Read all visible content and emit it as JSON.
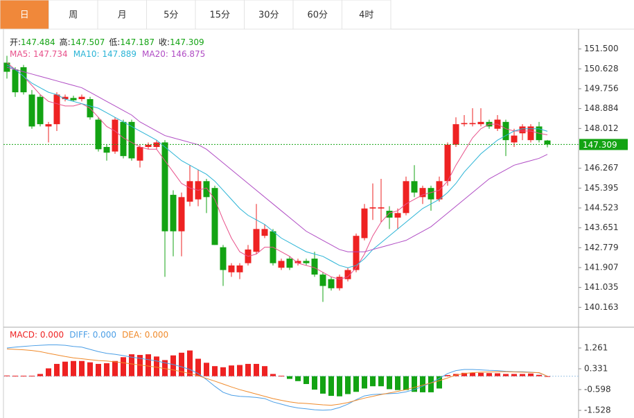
{
  "toolbar": {
    "tabs": [
      "日",
      "周",
      "月",
      "5分",
      "15分",
      "30分",
      "60分",
      "4时"
    ],
    "active": 0
  },
  "chart_data": {
    "type": "candlestick",
    "readout": [
      {
        "label": "开:",
        "value": "147.484"
      },
      {
        "label": "高:",
        "value": "147.507"
      },
      {
        "label": "低:",
        "value": "147.187"
      },
      {
        "label": "收:",
        "value": "147.309"
      }
    ],
    "up_color": "#ee2222",
    "down_color": "#13a313",
    "open": [
      150.9,
      150.6,
      150.7,
      149.5,
      149.4,
      148.1,
      148.2,
      149.3,
      149.35,
      149.3,
      149.3,
      148.4,
      147.2,
      147.0,
      148.3,
      148.3,
      146.6,
      147.2,
      147.2,
      147.4,
      145.1,
      143.5,
      144.8,
      144.9,
      145.7,
      145.4,
      142.8,
      141.7,
      141.7,
      142.1,
      142.6,
      143.3,
      143.5,
      141.9,
      142.3,
      142.1,
      142.2,
      142.3,
      141.6,
      141.4,
      141.0,
      141.4,
      141.8,
      143.2,
      144.5,
      144.5,
      144.4,
      144.1,
      144.3,
      145.7,
      145.0,
      145.4,
      144.9,
      145.7,
      147.3,
      148.2,
      148.2,
      148.2,
      148.3,
      148.0,
      148.3,
      147.4,
      147.8,
      147.5,
      148.1,
      147.484
    ],
    "high": [
      151.2,
      150.7,
      150.8,
      149.7,
      149.5,
      148.3,
      149.6,
      149.5,
      149.45,
      149.5,
      149.4,
      148.5,
      147.3,
      148.5,
      148.4,
      148.4,
      147.3,
      147.4,
      147.5,
      147.5,
      145.3,
      145.2,
      146.4,
      146.2,
      145.8,
      145.5,
      142.9,
      142.1,
      142.1,
      142.9,
      144.7,
      143.8,
      143.6,
      142.3,
      142.4,
      142.3,
      142.3,
      142.6,
      141.7,
      141.5,
      141.6,
      141.9,
      143.4,
      144.7,
      145.6,
      145.8,
      144.6,
      144.5,
      145.9,
      146.4,
      145.5,
      145.5,
      145.9,
      147.4,
      148.5,
      148.6,
      148.9,
      148.9,
      148.4,
      148.6,
      148.4,
      148.0,
      148.2,
      148.2,
      148.3,
      147.507
    ],
    "low": [
      150.2,
      149.4,
      149.5,
      148.0,
      148.1,
      147.4,
      147.9,
      149.2,
      149.2,
      149.2,
      148.4,
      147.0,
      146.6,
      146.9,
      146.7,
      146.6,
      146.3,
      147.1,
      147.1,
      141.5,
      142.4,
      142.4,
      144.6,
      144.6,
      144.3,
      142.9,
      141.1,
      141.5,
      141.4,
      142.0,
      142.5,
      143.2,
      142.0,
      141.8,
      141.8,
      142.0,
      142.0,
      141.5,
      140.4,
      140.9,
      140.9,
      141.3,
      141.7,
      143.1,
      144.0,
      143.9,
      143.6,
      143.6,
      144.2,
      145.0,
      144.7,
      144.4,
      144.8,
      145.5,
      147.2,
      148.1,
      148.1,
      148.1,
      148.0,
      147.9,
      146.8,
      147.2,
      147.5,
      147.4,
      147.4,
      147.187
    ],
    "close": [
      150.5,
      149.6,
      149.6,
      148.1,
      148.2,
      148.2,
      149.5,
      149.4,
      149.25,
      149.4,
      148.5,
      147.1,
      146.95,
      148.4,
      146.8,
      146.7,
      147.2,
      147.3,
      147.4,
      143.5,
      143.5,
      145.0,
      145.7,
      145.7,
      145.0,
      142.9,
      141.8,
      142.0,
      142.0,
      142.7,
      143.6,
      143.6,
      142.1,
      142.2,
      141.9,
      142.2,
      142.1,
      141.6,
      141.1,
      141.0,
      141.5,
      141.8,
      143.3,
      144.5,
      144.55,
      144.55,
      144.1,
      144.3,
      145.7,
      145.2,
      145.4,
      144.9,
      145.7,
      147.3,
      148.2,
      148.25,
      148.25,
      148.3,
      148.1,
      148.4,
      147.5,
      147.7,
      148.1,
      148.1,
      147.5,
      147.309
    ],
    "ma": [
      {
        "legend": "MA5: 147.734",
        "color": "#e8508a",
        "values": [
          150.9,
          150.6,
          150.3,
          149.9,
          149.5,
          149.2,
          149.1,
          149.0,
          149.0,
          149.1,
          148.9,
          148.5,
          148.1,
          147.9,
          147.6,
          147.4,
          147.2,
          147.1,
          147.1,
          146.6,
          146.1,
          145.6,
          145.4,
          145.3,
          145.4,
          144.9,
          144.0,
          143.2,
          142.6,
          142.4,
          142.5,
          142.8,
          142.8,
          142.6,
          142.4,
          142.1,
          142.0,
          141.9,
          141.7,
          141.5,
          141.4,
          141.5,
          141.9,
          142.5,
          143.3,
          143.9,
          144.3,
          144.4,
          144.7,
          144.9,
          145.1,
          145.2,
          145.3,
          145.7,
          146.4,
          147.0,
          147.6,
          148.0,
          148.2,
          148.2,
          148.0,
          147.9,
          147.9,
          147.9,
          147.8,
          147.734
        ]
      },
      {
        "legend": "MA10: 147.889",
        "color": "#2ab4d6",
        "values": [
          150.8,
          150.6,
          150.3,
          150.0,
          149.8,
          149.6,
          149.5,
          149.3,
          149.2,
          149.1,
          149.0,
          148.9,
          148.7,
          148.5,
          148.3,
          148.1,
          147.9,
          147.7,
          147.5,
          147.2,
          146.9,
          146.6,
          146.4,
          146.2,
          146.0,
          145.7,
          145.3,
          144.9,
          144.5,
          144.2,
          144.0,
          143.8,
          143.5,
          143.2,
          143.0,
          142.8,
          142.6,
          142.5,
          142.4,
          142.2,
          142.0,
          141.9,
          142.0,
          142.3,
          142.7,
          143.0,
          143.3,
          143.6,
          143.9,
          144.2,
          144.5,
          144.7,
          144.9,
          145.2,
          145.6,
          146.1,
          146.5,
          146.9,
          147.2,
          147.5,
          147.7,
          147.9,
          148.0,
          148.0,
          148.0,
          147.889
        ]
      },
      {
        "legend": "MA20: 146.875",
        "color": "#b04cc4",
        "values": [
          150.7,
          150.6,
          150.5,
          150.4,
          150.3,
          150.2,
          150.1,
          150.0,
          149.9,
          149.8,
          149.6,
          149.4,
          149.2,
          149.0,
          148.8,
          148.6,
          148.3,
          148.1,
          147.9,
          147.7,
          147.6,
          147.5,
          147.4,
          147.3,
          147.1,
          146.8,
          146.5,
          146.2,
          145.9,
          145.6,
          145.3,
          145.0,
          144.7,
          144.4,
          144.1,
          143.8,
          143.5,
          143.3,
          143.1,
          142.9,
          142.7,
          142.6,
          142.6,
          142.6,
          142.7,
          142.8,
          142.9,
          143.0,
          143.1,
          143.3,
          143.5,
          143.7,
          144.0,
          144.3,
          144.6,
          144.9,
          145.2,
          145.5,
          145.8,
          146.0,
          146.2,
          146.4,
          146.5,
          146.6,
          146.7,
          146.875
        ]
      }
    ],
    "last_price": 147.309,
    "ylim": [
      139.291,
      152.372
    ],
    "yticks": [
      {
        "value": 151.5,
        "label": "151.500"
      },
      150.628,
      149.756,
      148.884,
      148.012,
      146.267,
      145.395,
      144.523,
      143.651,
      142.779,
      141.907,
      141.035,
      140.163
    ],
    "macd": {
      "legend": "MACD: 0.000",
      "color": "#ee2222",
      "neg_color": "#13a313",
      "values": [
        0.03,
        0.02,
        0.02,
        0.02,
        0.1,
        0.35,
        0.55,
        0.65,
        0.68,
        0.68,
        0.62,
        0.55,
        0.58,
        0.68,
        0.85,
        0.98,
        0.95,
        0.98,
        0.88,
        0.72,
        0.93,
        1.05,
        1.15,
        0.78,
        0.6,
        0.45,
        0.4,
        0.48,
        0.5,
        0.55,
        0.55,
        0.45,
        0.1,
        0.02,
        -0.12,
        -0.22,
        -0.35,
        -0.6,
        -0.78,
        -0.88,
        -0.9,
        -0.8,
        -0.7,
        -0.55,
        -0.45,
        -0.45,
        -0.58,
        -0.62,
        -0.62,
        -0.7,
        -0.72,
        -0.72,
        -0.55,
        0.05,
        0.1,
        0.15,
        0.15,
        0.15,
        0.14,
        0.13,
        0.1,
        0.1,
        0.1,
        0.12,
        0.06,
        0.0
      ]
    },
    "diff": {
      "legend": "DIFF: 0.000",
      "color": "#4a9ee6",
      "values": [
        1.26,
        1.3,
        1.33,
        1.36,
        1.38,
        1.4,
        1.4,
        1.38,
        1.33,
        1.3,
        1.2,
        1.1,
        1.02,
        0.98,
        0.92,
        0.85,
        0.8,
        0.74,
        0.68,
        0.6,
        0.52,
        0.42,
        0.3,
        0.12,
        -0.15,
        -0.45,
        -0.72,
        -0.85,
        -0.9,
        -0.92,
        -0.95,
        -1.0,
        -1.15,
        -1.25,
        -1.35,
        -1.42,
        -1.46,
        -1.5,
        -1.52,
        -1.5,
        -1.4,
        -1.25,
        -1.05,
        -0.88,
        -0.82,
        -0.8,
        -0.78,
        -0.76,
        -0.7,
        -0.6,
        -0.45,
        -0.3,
        -0.1,
        0.12,
        0.25,
        0.3,
        0.3,
        0.28,
        0.26,
        0.25,
        0.22,
        0.2,
        0.2,
        0.18,
        0.15,
        0.0
      ]
    },
    "dea": {
      "legend": "DEA: 0.000",
      "color": "#f08a2a",
      "values": [
        1.22,
        1.2,
        1.18,
        1.15,
        1.1,
        1.02,
        0.95,
        0.88,
        0.82,
        0.78,
        0.74,
        0.7,
        0.68,
        0.64,
        0.6,
        0.55,
        0.5,
        0.45,
        0.4,
        0.34,
        0.28,
        0.2,
        0.12,
        0.02,
        -0.1,
        -0.22,
        -0.35,
        -0.48,
        -0.6,
        -0.7,
        -0.8,
        -0.9,
        -1.0,
        -1.08,
        -1.15,
        -1.2,
        -1.22,
        -1.25,
        -1.28,
        -1.3,
        -1.25,
        -1.18,
        -1.08,
        -0.98,
        -0.9,
        -0.82,
        -0.75,
        -0.68,
        -0.6,
        -0.5,
        -0.4,
        -0.3,
        -0.2,
        -0.08,
        0.05,
        0.12,
        0.16,
        0.18,
        0.19,
        0.2,
        0.2,
        0.19,
        0.18,
        0.17,
        0.16,
        0.0
      ]
    },
    "y2lim": [
      -1.869,
      2.191
    ],
    "y2ticks": [
      1.261,
      0.331,
      -0.598,
      -1.528
    ]
  }
}
